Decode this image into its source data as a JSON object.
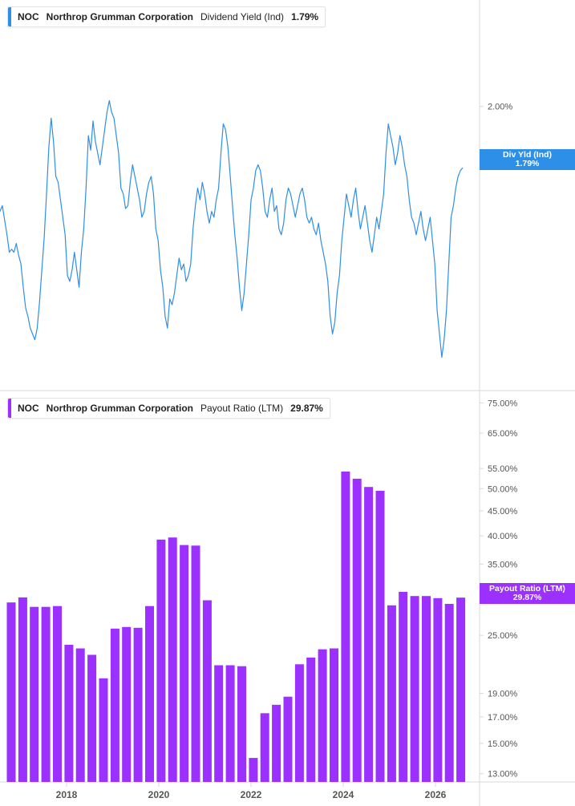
{
  "top_legend": {
    "ticker": "NOC",
    "company": "Northrop Grumman Corporation",
    "metric": "Dividend Yield (Ind)",
    "value": "1.79%"
  },
  "bottom_legend": {
    "ticker": "NOC",
    "company": "Northrop Grumman Corporation",
    "metric": "Payout Ratio (LTM)",
    "value": "29.87%"
  },
  "top_tag": {
    "line1": "Div Yld (Ind)",
    "line2": "1.79%"
  },
  "bottom_tag": {
    "line1": "Payout Ratio (LTM)",
    "line2": "29.87%"
  },
  "colors": {
    "yield": "#2e8fe8",
    "payout": "#9b30ff",
    "grid": "#d9d9d9",
    "text": "#555555"
  },
  "chart_data": [
    {
      "type": "line",
      "series": [
        {
          "name": "Dividend Yield (Ind)",
          "values": [
            1.64,
            1.66,
            1.61,
            1.56,
            1.5,
            1.51,
            1.5,
            1.53,
            1.49,
            1.46,
            1.38,
            1.31,
            1.28,
            1.24,
            1.22,
            1.2,
            1.24,
            1.33,
            1.44,
            1.55,
            1.7,
            1.86,
            1.96,
            1.88,
            1.76,
            1.74,
            1.68,
            1.62,
            1.56,
            1.42,
            1.4,
            1.44,
            1.5,
            1.44,
            1.38,
            1.5,
            1.58,
            1.72,
            1.9,
            1.85,
            1.95,
            1.88,
            1.84,
            1.8,
            1.86,
            1.92,
            1.98,
            2.02,
            1.98,
            1.96,
            1.9,
            1.84,
            1.72,
            1.7,
            1.65,
            1.66,
            1.74,
            1.8,
            1.76,
            1.72,
            1.68,
            1.62,
            1.64,
            1.7,
            1.74,
            1.76,
            1.7,
            1.58,
            1.54,
            1.44,
            1.38,
            1.28,
            1.24,
            1.34,
            1.32,
            1.36,
            1.42,
            1.48,
            1.44,
            1.46,
            1.4,
            1.42,
            1.46,
            1.58,
            1.66,
            1.72,
            1.68,
            1.74,
            1.7,
            1.64,
            1.6,
            1.64,
            1.62,
            1.68,
            1.72,
            1.84,
            1.94,
            1.92,
            1.86,
            1.76,
            1.66,
            1.56,
            1.48,
            1.38,
            1.3,
            1.36,
            1.46,
            1.56,
            1.68,
            1.72,
            1.78,
            1.8,
            1.78,
            1.72,
            1.64,
            1.62,
            1.68,
            1.72,
            1.64,
            1.66,
            1.58,
            1.56,
            1.6,
            1.68,
            1.72,
            1.7,
            1.66,
            1.62,
            1.66,
            1.7,
            1.72,
            1.68,
            1.62,
            1.6,
            1.62,
            1.58,
            1.56,
            1.6,
            1.54,
            1.5,
            1.46,
            1.4,
            1.28,
            1.22,
            1.26,
            1.36,
            1.42,
            1.54,
            1.62,
            1.7,
            1.66,
            1.62,
            1.68,
            1.72,
            1.64,
            1.58,
            1.62,
            1.66,
            1.6,
            1.54,
            1.5,
            1.56,
            1.62,
            1.58,
            1.64,
            1.7,
            1.84,
            1.94,
            1.9,
            1.86,
            1.8,
            1.84,
            1.9,
            1.86,
            1.8,
            1.76,
            1.68,
            1.62,
            1.6,
            1.56,
            1.6,
            1.64,
            1.58,
            1.54,
            1.58,
            1.62,
            1.54,
            1.46,
            1.3,
            1.22,
            1.14,
            1.2,
            1.3,
            1.46,
            1.62,
            1.66,
            1.72,
            1.76,
            1.78,
            1.79
          ]
        }
      ],
      "ylim": [
        1.1,
        2.2
      ],
      "yticks": [
        "2.00%"
      ]
    },
    {
      "type": "bar",
      "categories": [
        "2016",
        "2017",
        "2017",
        "2017",
        "2017",
        "2018",
        "2018",
        "2018",
        "2018",
        "2019",
        "2019",
        "2019",
        "2019",
        "2020",
        "2020",
        "2020",
        "2020",
        "2021",
        "2021",
        "2021",
        "2021",
        "2022",
        "2022",
        "2022",
        "2022",
        "2023",
        "2023",
        "2023",
        "2023",
        "2024",
        "2024",
        "2024",
        "2024",
        "2025",
        "2025",
        "2025",
        "2025",
        "2026",
        "2026",
        "2026"
      ],
      "x_decimal": [
        2016.8,
        2017.05,
        2017.3,
        2017.55,
        2017.8,
        2018.05,
        2018.3,
        2018.55,
        2018.8,
        2019.05,
        2019.3,
        2019.55,
        2019.8,
        2020.05,
        2020.3,
        2020.55,
        2020.8,
        2021.05,
        2021.3,
        2021.55,
        2021.8,
        2022.05,
        2022.3,
        2022.55,
        2022.8,
        2023.05,
        2023.3,
        2023.55,
        2023.8,
        2024.05,
        2024.3,
        2024.55,
        2024.8,
        2025.05,
        2025.3,
        2025.55,
        2025.8,
        2026.05,
        2026.3,
        2026.55
      ],
      "values": [
        29.2,
        29.9,
        28.6,
        28.6,
        28.7,
        23.9,
        23.5,
        22.8,
        20.4,
        25.8,
        26.0,
        25.9,
        28.7,
        39.3,
        39.7,
        38.3,
        38.2,
        29.5,
        21.7,
        21.7,
        21.6,
        14.0,
        17.3,
        18.0,
        18.7,
        21.8,
        22.5,
        23.4,
        23.5,
        54.2,
        52.4,
        50.4,
        49.5,
        28.8,
        30.7,
        30.1,
        30.1,
        29.8,
        29.0,
        29.87
      ],
      "ylim": [
        12.5,
        78
      ],
      "ytick_values": [
        13,
        15,
        17,
        19,
        25,
        35,
        40,
        45,
        50,
        55,
        65,
        75
      ],
      "yticks": [
        "13.00%",
        "15.00%",
        "17.00%",
        "19.00%",
        "25.00%",
        "35.00%",
        "40.00%",
        "45.00%",
        "50.00%",
        "55.00%",
        "65.00%",
        "75.00%"
      ],
      "xticks": [
        "2018",
        "2020",
        "2022",
        "2024",
        "2026"
      ],
      "xtick_values": [
        2018,
        2020,
        2022,
        2024,
        2026
      ],
      "scale": "log"
    }
  ]
}
